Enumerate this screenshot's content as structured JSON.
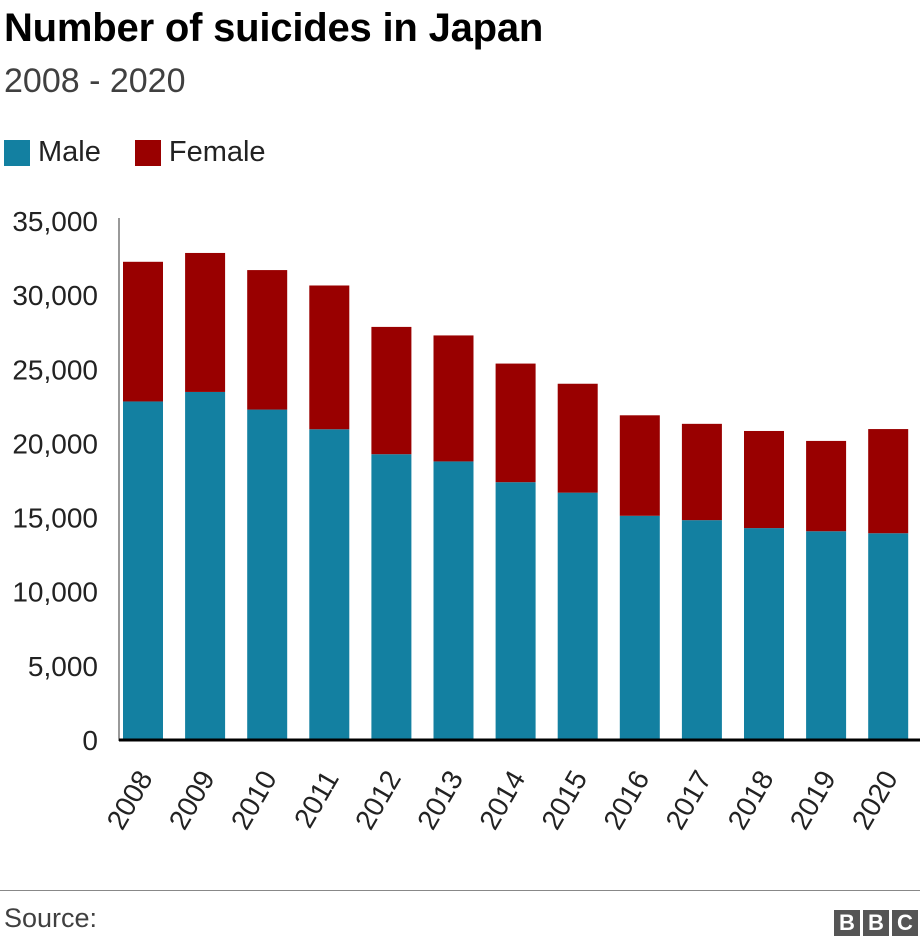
{
  "header": {
    "title": "Number of suicides in Japan",
    "subtitle": "2008 - 2020"
  },
  "legend": {
    "items": [
      {
        "label": "Male",
        "color": "#1380A1"
      },
      {
        "label": "Female",
        "color": "#990000"
      }
    ]
  },
  "footer": {
    "source_label": "Source:",
    "logo": [
      "B",
      "B",
      "C"
    ]
  },
  "chart_data": {
    "type": "bar",
    "stacked": true,
    "title": "Number of suicides in Japan",
    "subtitle": "2008 - 2020",
    "xlabel": "",
    "ylabel": "",
    "categories": [
      "2008",
      "2009",
      "2010",
      "2011",
      "2012",
      "2013",
      "2014",
      "2015",
      "2016",
      "2017",
      "2018",
      "2019",
      "2020"
    ],
    "series": [
      {
        "name": "Male",
        "color": "#1380A1",
        "values": [
          22831,
          23472,
          22283,
          20955,
          19273,
          18787,
          17386,
          16681,
          15121,
          14826,
          14290,
          14078,
          13943
        ]
      },
      {
        "name": "Female",
        "color": "#990000",
        "values": [
          9418,
          9373,
          9407,
          9696,
          8585,
          8496,
          7999,
          7344,
          6776,
          6495,
          6550,
          6091,
          7026
        ]
      }
    ],
    "ylim": [
      0,
      35000
    ],
    "yticks": [
      0,
      5000,
      10000,
      15000,
      20000,
      25000,
      30000,
      35000
    ],
    "ytick_labels": [
      "0",
      "5,000",
      "10,000",
      "15,000",
      "20,000",
      "25,000",
      "30,000",
      "35,000"
    ],
    "grid": false,
    "legend_position": "top-left"
  }
}
